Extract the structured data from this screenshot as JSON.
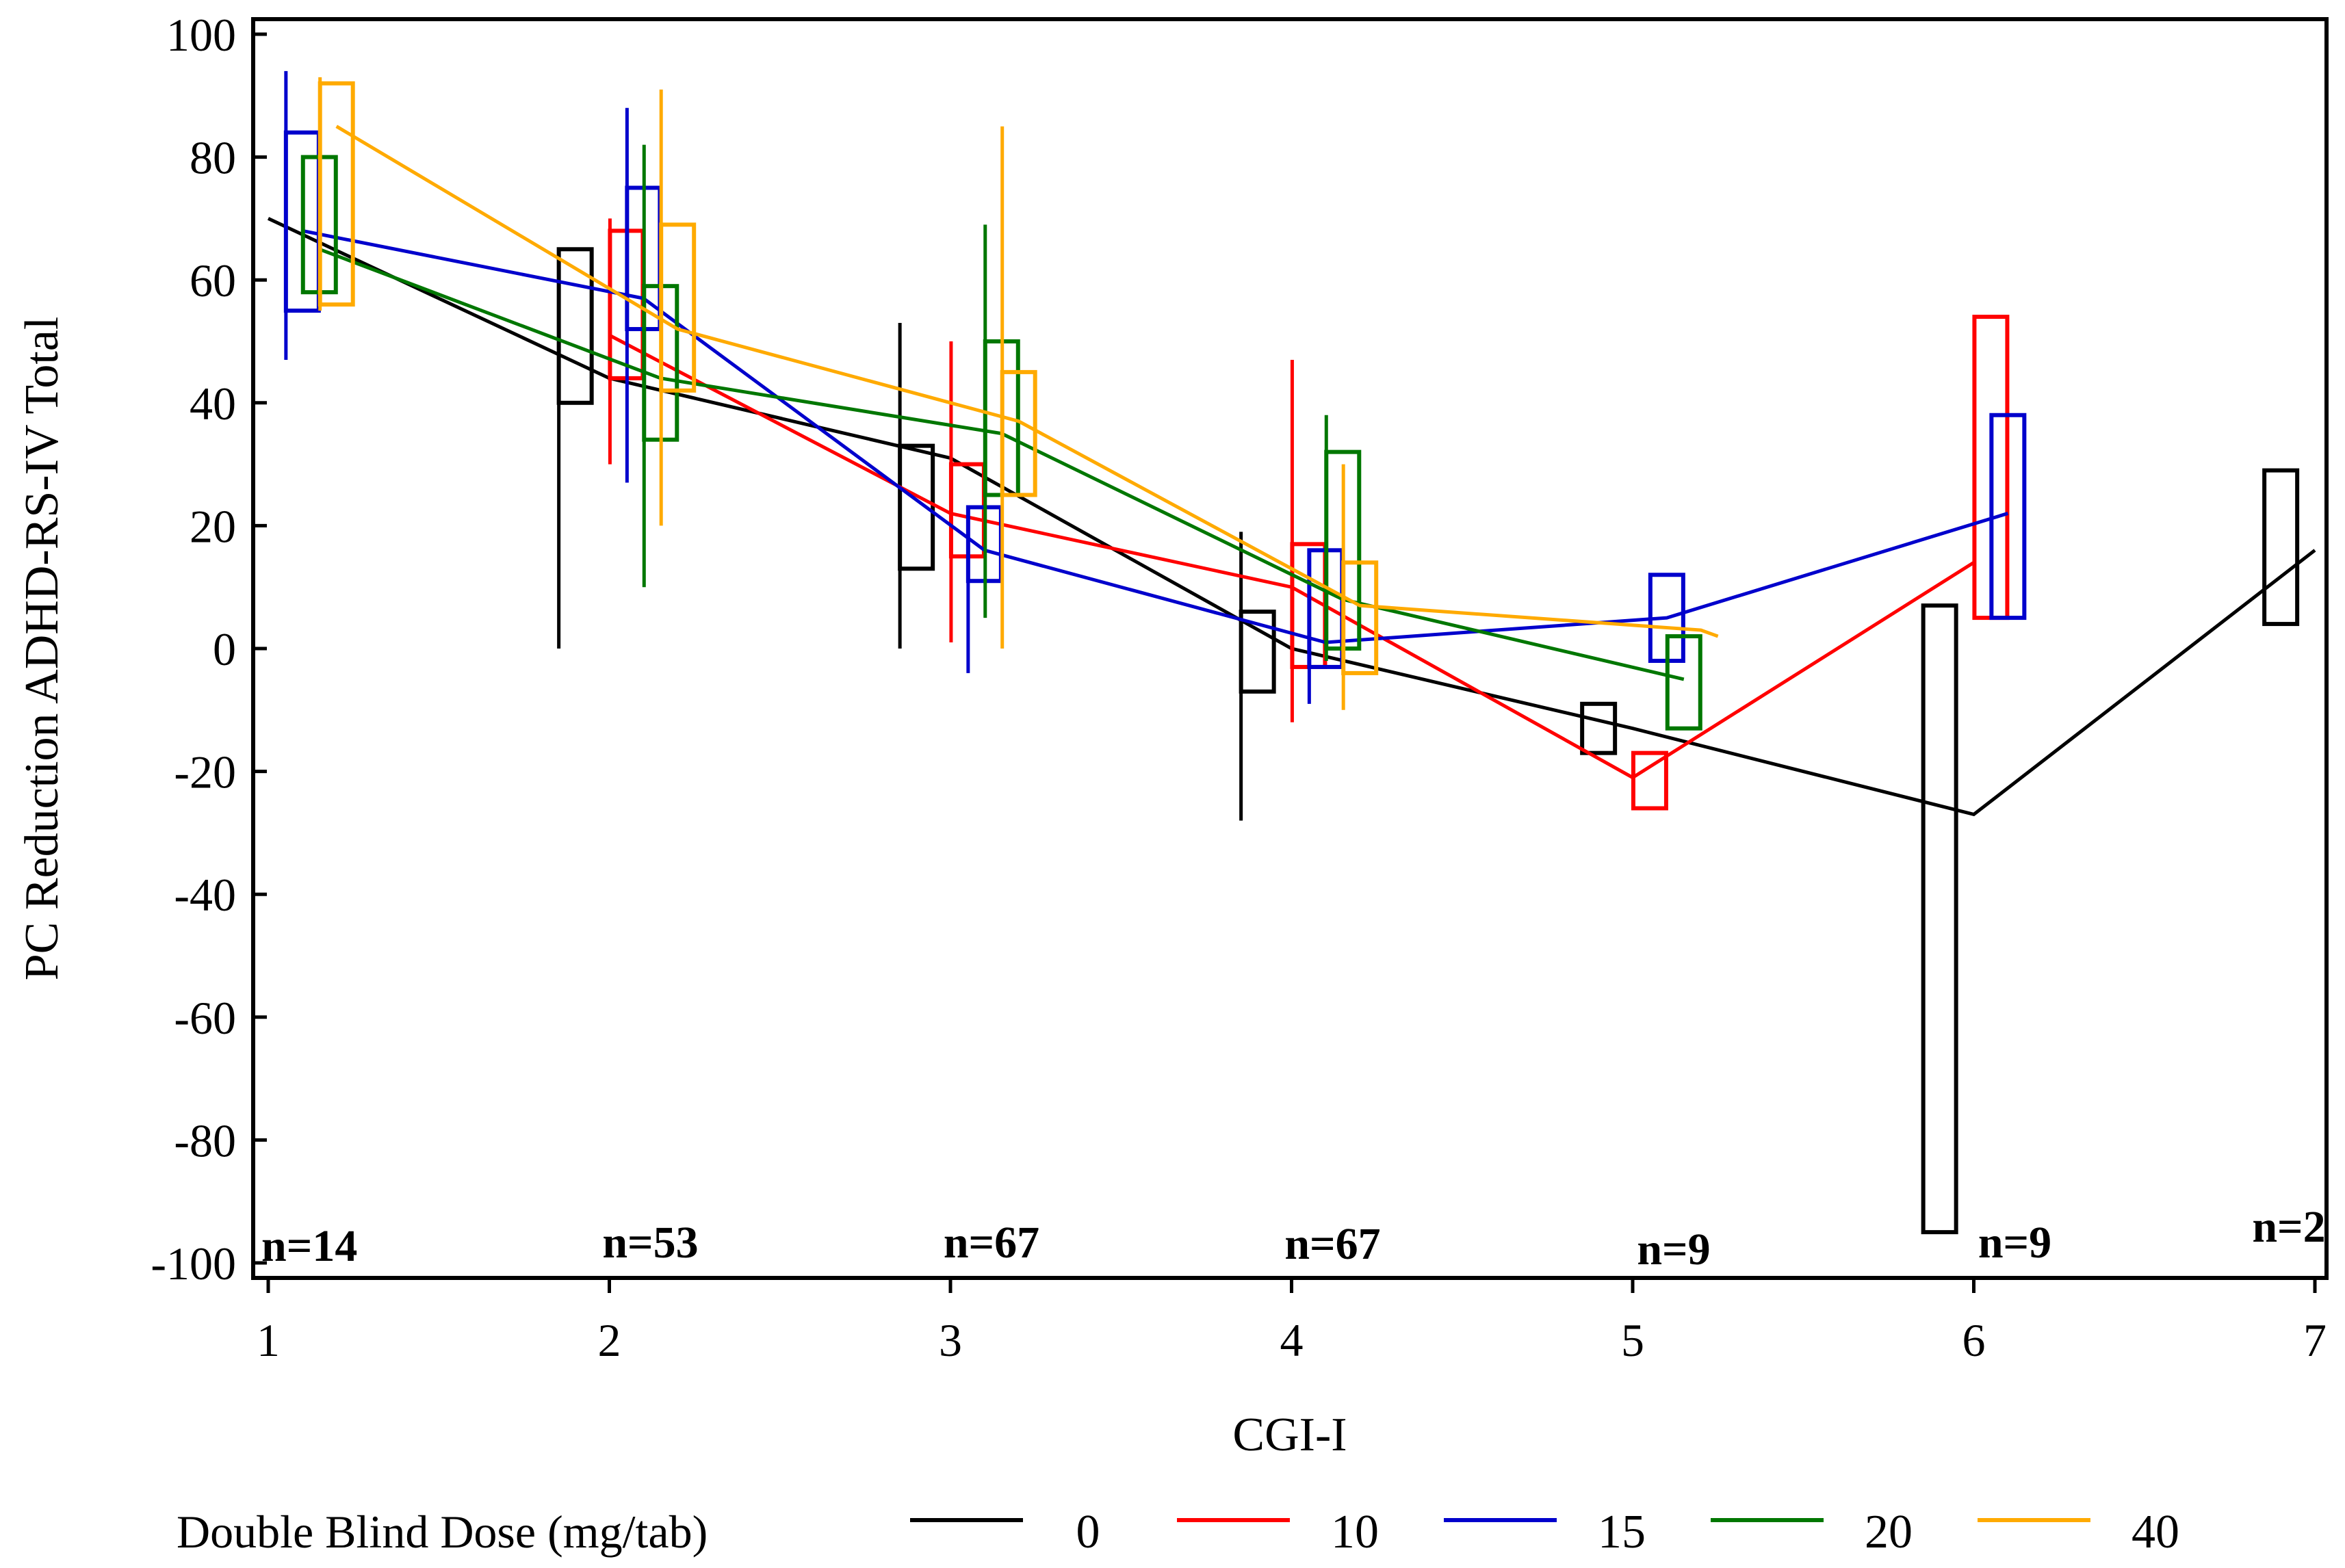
{
  "chart_data": {
    "type": "line",
    "title": "",
    "xlabel": "CGI-I",
    "ylabel": "PC Reduction ADHD-RS-IV Total",
    "xlim": [
      1,
      7
    ],
    "ylim": [
      -100,
      100
    ],
    "x_ticks": [
      "1",
      "2",
      "3",
      "4",
      "5",
      "6",
      "7"
    ],
    "y_ticks": [
      "100",
      "80",
      "60",
      "40",
      "20",
      "0",
      "-20",
      "-40",
      "-60",
      "-80",
      "-100"
    ],
    "grid": false,
    "legend_title": "Double Blind Dose (mg/tab)",
    "legend_position": "bottom",
    "n_labels": [
      {
        "x": 1,
        "text": "n=14"
      },
      {
        "x": 2,
        "text": "n=53"
      },
      {
        "x": 3,
        "text": "n=67"
      },
      {
        "x": 4,
        "text": "n=67"
      },
      {
        "x": 5,
        "text": "n=9"
      },
      {
        "x": 6,
        "text": "n=9"
      },
      {
        "x": 7,
        "text": "n=2"
      }
    ],
    "series": [
      {
        "name": "0",
        "color": "#000000",
        "offset": -0.1,
        "line": [
          [
            1,
            70
          ],
          [
            2,
            44
          ],
          [
            3,
            31
          ],
          [
            4,
            0
          ],
          [
            5,
            -13
          ],
          [
            6,
            -27
          ],
          [
            7,
            16
          ]
        ],
        "boxes": [
          {
            "x": 2,
            "q1": 40,
            "q3": 65,
            "min": 0,
            "max": 65
          },
          {
            "x": 3,
            "q1": 13,
            "q3": 33,
            "min": 0,
            "max": 53
          },
          {
            "x": 4,
            "q1": -7,
            "q3": 6,
            "min": -28,
            "max": 19
          },
          {
            "x": 5,
            "q1": -17,
            "q3": -9,
            "min": -17,
            "max": -9
          },
          {
            "x": 6,
            "q1": -95,
            "q3": 7,
            "min": -95,
            "max": 7
          },
          {
            "x": 7,
            "q1": 4,
            "q3": 29,
            "min": 4,
            "max": 29
          }
        ]
      },
      {
        "name": "10",
        "color": "#ff0000",
        "offset": 0.05,
        "line": [
          [
            2,
            51
          ],
          [
            3,
            22
          ],
          [
            4,
            10
          ],
          [
            5,
            -21
          ],
          [
            6,
            14
          ]
        ],
        "boxes": [
          {
            "x": 2,
            "q1": 44,
            "q3": 68,
            "min": 30,
            "max": 70
          },
          {
            "x": 3,
            "q1": 15,
            "q3": 30,
            "min": 1,
            "max": 50
          },
          {
            "x": 4,
            "q1": -3,
            "q3": 17,
            "min": -12,
            "max": 47
          },
          {
            "x": 5,
            "q1": -26,
            "q3": -17,
            "min": -26,
            "max": -17
          },
          {
            "x": 6,
            "q1": 5,
            "q3": 54,
            "min": 5,
            "max": 54
          }
        ]
      },
      {
        "name": "15",
        "color": "#0000cc",
        "offset": 0.1,
        "line": [
          [
            1.1,
            68
          ],
          [
            2.1,
            57
          ],
          [
            3.1,
            16
          ],
          [
            4.1,
            1
          ],
          [
            5.1,
            5
          ],
          [
            6.1,
            22
          ]
        ],
        "boxes": [
          {
            "x": 1,
            "q1": 55,
            "q3": 84,
            "min": 47,
            "max": 94
          },
          {
            "x": 2,
            "q1": 52,
            "q3": 75,
            "min": 27,
            "max": 88
          },
          {
            "x": 3,
            "q1": 11,
            "q3": 23,
            "min": -4,
            "max": 23
          },
          {
            "x": 4,
            "q1": -3,
            "q3": 16,
            "min": -9,
            "max": 16
          },
          {
            "x": 5,
            "q1": -2,
            "q3": 12,
            "min": -2,
            "max": 12
          },
          {
            "x": 6,
            "q1": 5,
            "q3": 38,
            "min": 5,
            "max": 38
          }
        ]
      },
      {
        "name": "20",
        "color": "#007700",
        "offset": 0.15,
        "line": [
          [
            1.15,
            65
          ],
          [
            2.15,
            44
          ],
          [
            3.15,
            35
          ],
          [
            4.15,
            8
          ],
          [
            5.15,
            -5
          ]
        ],
        "boxes": [
          {
            "x": 1,
            "q1": 58,
            "q3": 80,
            "min": 58,
            "max": 80
          },
          {
            "x": 2,
            "q1": 34,
            "q3": 59,
            "min": 10,
            "max": 82
          },
          {
            "x": 3,
            "q1": 25,
            "q3": 50,
            "min": 5,
            "max": 69
          },
          {
            "x": 4,
            "q1": 0,
            "q3": 32,
            "min": -2,
            "max": 38
          },
          {
            "x": 5,
            "q1": -13,
            "q3": 2,
            "min": -13,
            "max": 2
          }
        ]
      },
      {
        "name": "40",
        "color": "#ffaa00",
        "offset": 0.2,
        "line": [
          [
            1.2,
            85
          ],
          [
            2.2,
            52
          ],
          [
            3.2,
            37
          ],
          [
            4.2,
            7
          ],
          [
            5.2,
            3
          ],
          [
            5.25,
            2
          ]
        ],
        "boxes": [
          {
            "x": 1,
            "q1": 56,
            "q3": 92,
            "min": 55,
            "max": 93
          },
          {
            "x": 2,
            "q1": 42,
            "q3": 69,
            "min": 20,
            "max": 91
          },
          {
            "x": 3,
            "q1": 25,
            "q3": 45,
            "min": 0,
            "max": 85
          },
          {
            "x": 4,
            "q1": -4,
            "q3": 14,
            "min": -10,
            "max": 30
          }
        ]
      }
    ]
  }
}
